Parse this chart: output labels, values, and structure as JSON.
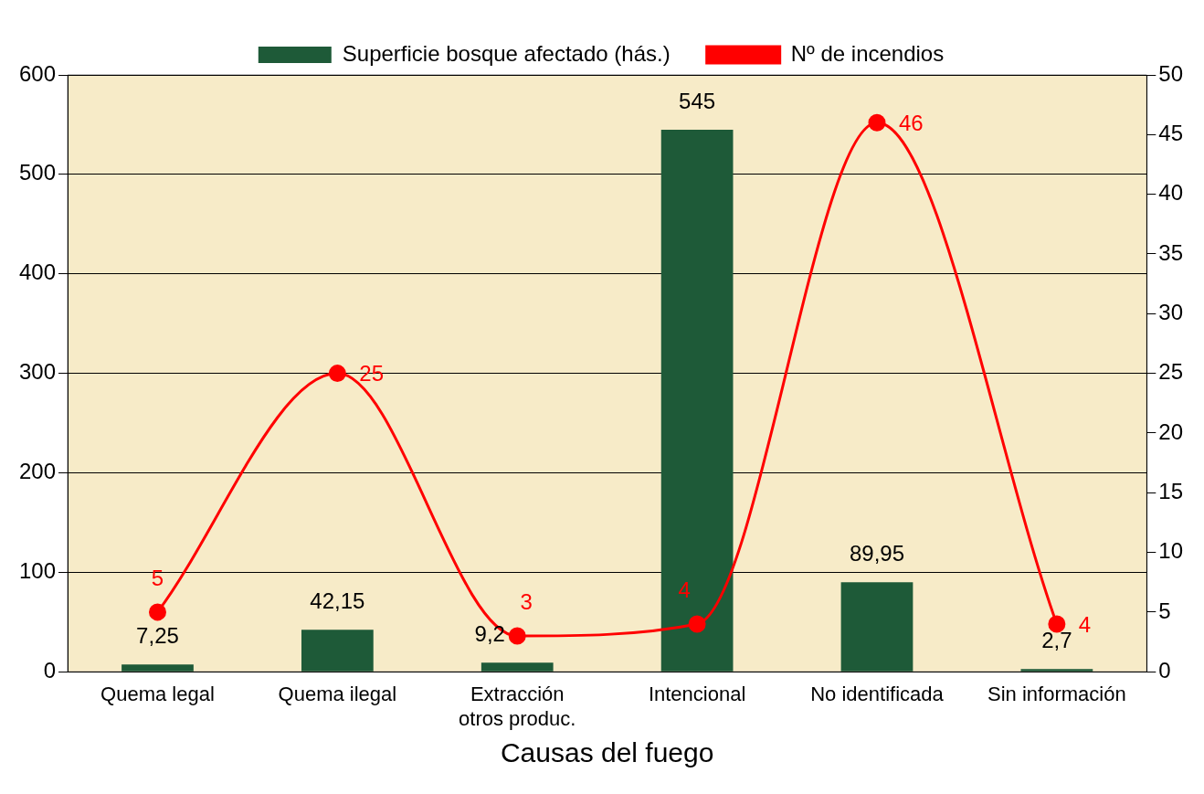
{
  "chart_data": {
    "type": "bar",
    "xlabel": "Causas del fuego",
    "categories": [
      "Quema legal",
      "Quema ilegal",
      "Extracción otros produc.",
      "Intencional",
      "No identificada",
      "Sin información"
    ],
    "series": [
      {
        "name": "Superficie bosque afectado (hás.)",
        "color": "#1e5a38",
        "values": [
          7.25,
          42.15,
          9.2,
          545,
          89.95,
          2.7
        ],
        "value_labels": [
          "7,25",
          "42,15",
          "9,2",
          "545",
          "89,95",
          "2,7"
        ]
      },
      {
        "name": "Nº de incendios",
        "type": "line",
        "axis": "y2",
        "color": "#ff0000",
        "marker": "circle",
        "values": [
          5,
          25,
          3,
          4,
          46,
          4
        ],
        "value_labels": [
          "5",
          "25",
          "3",
          "4",
          "46",
          "4"
        ]
      }
    ],
    "ylim": [
      0,
      600
    ],
    "yticks": [
      0,
      100,
      200,
      300,
      400,
      500,
      600
    ],
    "y2lim": [
      0,
      50
    ],
    "y2ticks": [
      0,
      5,
      10,
      15,
      20,
      25,
      30,
      35,
      40,
      45,
      50
    ],
    "grid": "y",
    "legend": "top"
  }
}
